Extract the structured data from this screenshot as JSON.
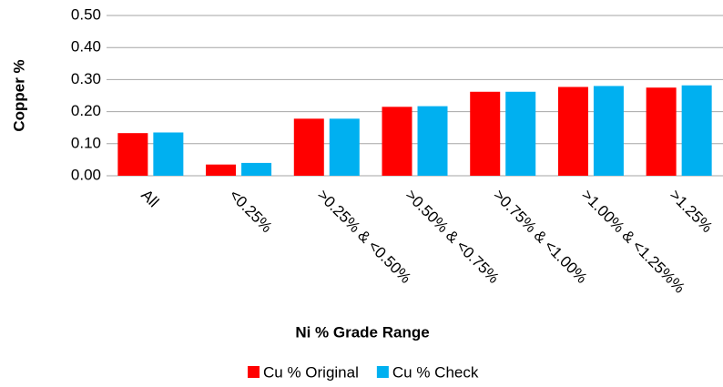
{
  "chart_data": {
    "type": "bar",
    "x_label": "Ni % Grade Range",
    "y_label": "Copper  %",
    "categories": [
      "All",
      "<0.25%",
      ">0.25% & <0.50%",
      ">0.50% & <0.75%",
      ">0.75% & <1.00%",
      ">1.00% & <1.25%%",
      ">1.25%"
    ],
    "series": [
      {
        "name": "Cu % Original",
        "color": "#ff0000",
        "values": [
          0.133,
          0.035,
          0.178,
          0.215,
          0.262,
          0.277,
          0.275
        ]
      },
      {
        "name": "Cu % Check",
        "color": "#00b0f0",
        "values": [
          0.135,
          0.04,
          0.178,
          0.217,
          0.262,
          0.28,
          0.282
        ]
      }
    ],
    "ylim": [
      0,
      0.5
    ],
    "yticks": [
      {
        "value": 0,
        "label": "0.00"
      },
      {
        "value": 0.1,
        "label": "0.10"
      },
      {
        "value": 0.2,
        "label": "0.20"
      },
      {
        "value": 0.3,
        "label": "0.30"
      },
      {
        "value": 0.4,
        "label": "0.40"
      },
      {
        "value": 0.5,
        "label": "0.50"
      }
    ],
    "grid": true,
    "legend": "bottom"
  }
}
